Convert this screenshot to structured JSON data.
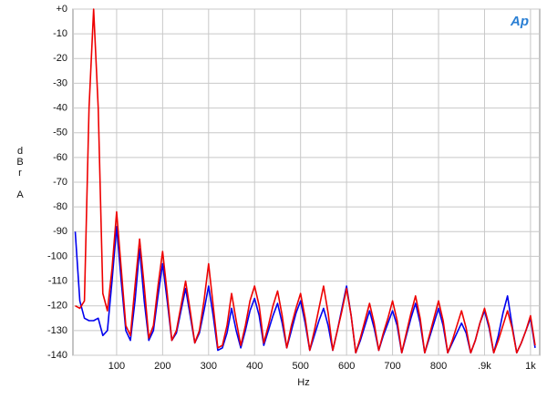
{
  "chart_data": {
    "type": "line",
    "logo": "Ap",
    "xlabel": "Hz",
    "ylabel": "dBr A",
    "xlim": [
      5,
      1020
    ],
    "ylim": [
      -140,
      0
    ],
    "grid": true,
    "xticks": [
      100,
      200,
      300,
      400,
      500,
      600,
      700,
      800,
      {
        "value": 900,
        "label": ".9k"
      },
      {
        "value": 1000,
        "label": "1k"
      }
    ],
    "yticks": [
      {
        "value": 0,
        "label": "+0"
      },
      -10,
      -20,
      -30,
      -40,
      -50,
      -60,
      -70,
      -80,
      -90,
      -100,
      -110,
      -120,
      -130,
      -140
    ],
    "x": [
      10,
      20,
      30,
      40,
      50,
      60,
      70,
      80,
      90,
      100,
      110,
      120,
      130,
      140,
      150,
      160,
      170,
      180,
      190,
      200,
      210,
      220,
      230,
      240,
      250,
      260,
      270,
      280,
      290,
      300,
      310,
      320,
      330,
      340,
      350,
      360,
      370,
      380,
      390,
      400,
      410,
      420,
      430,
      440,
      450,
      460,
      470,
      480,
      490,
      500,
      510,
      520,
      530,
      540,
      550,
      560,
      570,
      580,
      590,
      600,
      610,
      620,
      630,
      640,
      650,
      660,
      670,
      680,
      690,
      700,
      710,
      720,
      730,
      740,
      750,
      760,
      770,
      780,
      790,
      800,
      810,
      820,
      830,
      840,
      850,
      860,
      870,
      880,
      890,
      900,
      910,
      920,
      930,
      940,
      950,
      960,
      970,
      980,
      990,
      1000,
      1010
    ],
    "series": [
      {
        "color": "#0000ee",
        "values": [
          -90,
          -118,
          -125,
          -126,
          -126,
          -125,
          -132,
          -130,
          -110,
          -88,
          -110,
          -130,
          -134,
          -118,
          -97,
          -118,
          -134,
          -130,
          -116,
          -103,
          -118,
          -134,
          -131,
          -122,
          -113,
          -124,
          -135,
          -131,
          -122,
          -112,
          -124,
          -138,
          -137,
          -131,
          -121,
          -130,
          -137,
          -130,
          -122,
          -117,
          -124,
          -136,
          -130,
          -124,
          -119,
          -127,
          -137,
          -130,
          -123,
          -118,
          -127,
          -138,
          -132,
          -126,
          -121,
          -128,
          -138,
          -130,
          -121,
          -112,
          -124,
          -139,
          -134,
          -128,
          -122,
          -129,
          -138,
          -132,
          -127,
          -122,
          -128,
          -139,
          -132,
          -125,
          -119,
          -127,
          -139,
          -133,
          -127,
          -121,
          -128,
          -139,
          -135,
          -131,
          -127,
          -131,
          -139,
          -134,
          -127,
          -122,
          -129,
          -139,
          -132,
          -123,
          -116,
          -128,
          -139,
          -135,
          -130,
          -125,
          -137
        ]
      },
      {
        "color": "#ee0000",
        "values": [
          -120,
          -121,
          -118,
          -40,
          0,
          -40,
          -115,
          -122,
          -105,
          -82,
          -105,
          -128,
          -132,
          -112,
          -93,
          -112,
          -133,
          -128,
          -112,
          -98,
          -115,
          -134,
          -130,
          -120,
          -110,
          -122,
          -135,
          -130,
          -118,
          -103,
          -120,
          -137,
          -136,
          -128,
          -115,
          -126,
          -136,
          -128,
          -118,
          -112,
          -120,
          -135,
          -128,
          -120,
          -114,
          -124,
          -137,
          -128,
          -121,
          -115,
          -125,
          -138,
          -130,
          -121,
          -112,
          -123,
          -138,
          -130,
          -122,
          -113,
          -124,
          -139,
          -133,
          -126,
          -119,
          -127,
          -138,
          -131,
          -125,
          -118,
          -126,
          -139,
          -131,
          -123,
          -116,
          -125,
          -139,
          -132,
          -125,
          -118,
          -126,
          -139,
          -134,
          -128,
          -122,
          -129,
          -139,
          -134,
          -127,
          -121,
          -128,
          -139,
          -134,
          -128,
          -122,
          -129,
          -139,
          -135,
          -130,
          -124,
          -136
        ]
      }
    ]
  }
}
